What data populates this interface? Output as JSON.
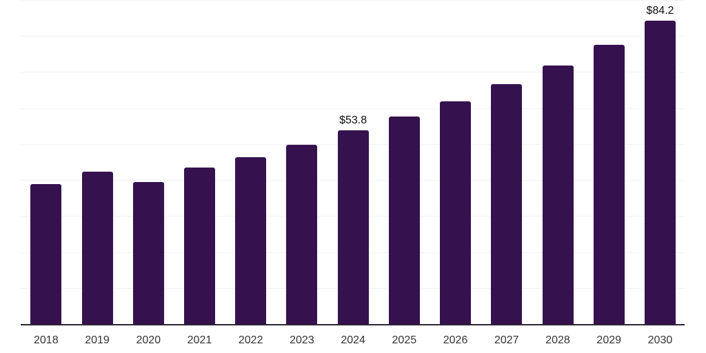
{
  "chart_data": {
    "type": "bar",
    "title": "",
    "xlabel": "",
    "ylabel": "",
    "categories": [
      "2018",
      "2019",
      "2020",
      "2021",
      "2022",
      "2023",
      "2024",
      "2025",
      "2026",
      "2027",
      "2028",
      "2029",
      "2030"
    ],
    "values": [
      38.8,
      42.4,
      39.5,
      43.4,
      46.4,
      49.8,
      53.8,
      57.6,
      61.9,
      66.6,
      71.8,
      77.6,
      84.2
    ],
    "value_labels": [
      {
        "category": "2024",
        "text": "$53.8"
      },
      {
        "category": "2030",
        "text": "$84.2"
      }
    ],
    "ylim": [
      0,
      90
    ],
    "gridline_step": 10,
    "grid": true,
    "legend": false,
    "colors": {
      "bar": "#35124e",
      "gridline": "#f3f2f4",
      "axis": "#2b2433",
      "tick_label": "#333333",
      "value_label": "#0d0d0d",
      "background": "#ffffff"
    }
  }
}
